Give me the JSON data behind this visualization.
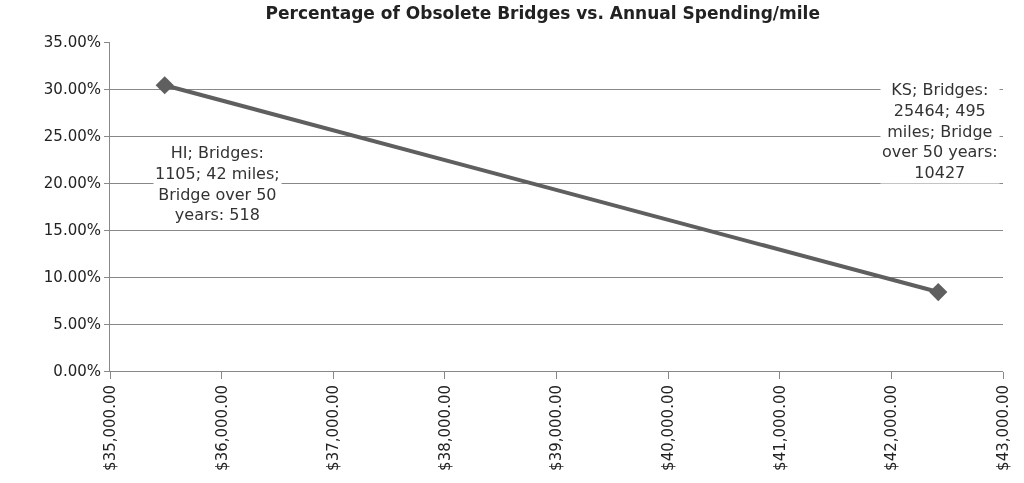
{
  "chart_data": {
    "type": "line",
    "title": "Percentage of Obsolete Bridges vs. Annual Spending/mile",
    "x": [
      35490,
      42420
    ],
    "series": [
      {
        "color": "#5f5f5f",
        "values": [
          30.4,
          8.4
        ]
      }
    ],
    "marker": "diamond",
    "line_style": "solid",
    "grid": "y",
    "xlim": [
      35000,
      43000
    ],
    "xticks": [
      {
        "value": 35000,
        "label": "$35,000.00"
      },
      {
        "value": 36000,
        "label": "$36,000.00"
      },
      {
        "value": 37000,
        "label": "$37,000.00"
      },
      {
        "value": 38000,
        "label": "$38,000.00"
      },
      {
        "value": 39000,
        "label": "$39,000.00"
      },
      {
        "value": 40000,
        "label": "$40,000.00"
      },
      {
        "value": 41000,
        "label": "$41,000.00"
      },
      {
        "value": 42000,
        "label": "$42,000.00"
      },
      {
        "value": 43000,
        "label": "$43,000.00"
      }
    ],
    "ylim": [
      0,
      35
    ],
    "yticks": [
      {
        "value": 0,
        "label": "0.00%"
      },
      {
        "value": 5,
        "label": "5.00%"
      },
      {
        "value": 10,
        "label": "10.00%"
      },
      {
        "value": 15,
        "label": "15.00%"
      },
      {
        "value": 20,
        "label": "20.00%"
      },
      {
        "value": 25,
        "label": "25.00%"
      },
      {
        "value": 30,
        "label": "30.00%"
      },
      {
        "value": 35,
        "label": "35.00%"
      }
    ],
    "annotations": [
      "HI; Bridges: 1105; 42 miles; Bridge over 50 years: 518",
      "KS; Bridges: 25464; 495 miles; Bridge over 50 years: 10427"
    ]
  }
}
